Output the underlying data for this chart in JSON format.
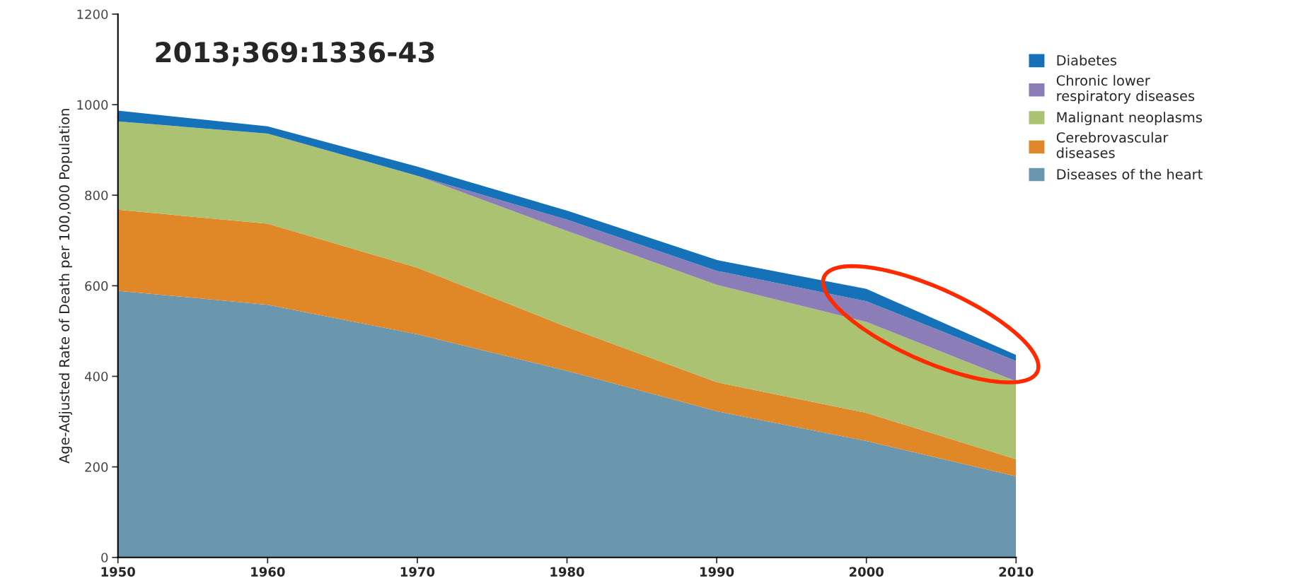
{
  "chart_data": {
    "type": "area",
    "stacked": true,
    "ylabel": "Age-Adjusted Rate of Death per 100,000 Population",
    "annotations": [
      "2013;369:1336-43"
    ],
    "x": [
      1950,
      1960,
      1970,
      1980,
      1990,
      2000,
      2010
    ],
    "series": [
      {
        "name": "Diseases of the heart",
        "color": "#6a97ad",
        "values": [
          589,
          558,
          493,
          412,
          323,
          257,
          179
        ]
      },
      {
        "name": "Cerebrovascular\ndiseases",
        "color": "#e08828",
        "values": [
          179,
          179,
          147,
          97,
          64,
          62,
          38
        ]
      },
      {
        "name": "Malignant neoplasms",
        "color": "#abc273",
        "values": [
          195,
          199,
          203,
          212,
          215,
          201,
          172
        ]
      },
      {
        "name": "Chronic lower\nrespiratory diseases",
        "color": "#8a7db8",
        "values": [
          0,
          0,
          0,
          25,
          31,
          46,
          45
        ]
      },
      {
        "name": "Diabetes",
        "color": "#1672b8",
        "values": [
          24,
          16,
          20,
          20,
          24,
          27,
          13
        ]
      }
    ],
    "xlim": [
      1950,
      2010
    ],
    "xticks": [
      1950,
      1960,
      1970,
      1980,
      1990,
      2000,
      2010
    ],
    "ylim": [
      0,
      1200
    ],
    "yticks": [
      0,
      200,
      400,
      600,
      800,
      1000,
      1200
    ],
    "grid": false,
    "legend": "right"
  }
}
